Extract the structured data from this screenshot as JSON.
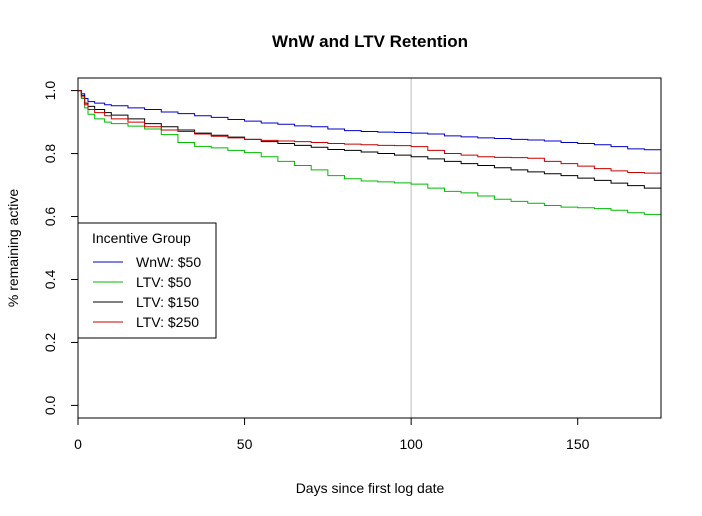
{
  "chart_data": {
    "type": "line",
    "title": "WnW and LTV Retention",
    "xlabel": "Days since first log date",
    "ylabel": "% remaining active",
    "xlim": [
      0,
      175
    ],
    "ylim": [
      -0.04,
      1.04
    ],
    "x_ticks": [
      "0",
      "50",
      "100",
      "150"
    ],
    "y_ticks": [
      "0.0",
      "0.2",
      "0.4",
      "0.6",
      "0.8",
      "1.0"
    ],
    "reference_line": {
      "x": 100,
      "color": "#bebebe"
    },
    "legend": {
      "title": "Incentive Group",
      "position": "left",
      "entries": [
        "WnW: $50",
        "LTV: $50",
        "LTV: $150",
        "LTV: $250"
      ]
    },
    "series": [
      {
        "name": "WnW: $50",
        "color": "#0000cc",
        "x": [
          0,
          1,
          2,
          3,
          5,
          8,
          10,
          15,
          20,
          25,
          30,
          35,
          40,
          45,
          50,
          55,
          60,
          65,
          70,
          75,
          80,
          85,
          90,
          95,
          100,
          105,
          110,
          115,
          120,
          125,
          130,
          135,
          140,
          145,
          150,
          155,
          160,
          165,
          170,
          175
        ],
        "y": [
          1.0,
          0.99,
          0.975,
          0.965,
          0.96,
          0.955,
          0.952,
          0.945,
          0.94,
          0.932,
          0.927,
          0.92,
          0.915,
          0.908,
          0.903,
          0.897,
          0.893,
          0.888,
          0.885,
          0.878,
          0.873,
          0.87,
          0.868,
          0.867,
          0.865,
          0.862,
          0.856,
          0.853,
          0.85,
          0.848,
          0.845,
          0.843,
          0.84,
          0.835,
          0.832,
          0.828,
          0.822,
          0.815,
          0.812,
          0.81
        ]
      },
      {
        "name": "LTV: $50",
        "color": "#00bb00",
        "x": [
          0,
          1,
          2,
          3,
          5,
          8,
          10,
          15,
          20,
          25,
          30,
          35,
          40,
          45,
          50,
          55,
          60,
          65,
          70,
          75,
          80,
          85,
          90,
          95,
          100,
          105,
          110,
          115,
          120,
          125,
          130,
          135,
          140,
          145,
          150,
          155,
          160,
          165,
          170,
          175
        ],
        "y": [
          1.0,
          0.975,
          0.945,
          0.925,
          0.91,
          0.9,
          0.895,
          0.887,
          0.878,
          0.86,
          0.835,
          0.823,
          0.818,
          0.81,
          0.803,
          0.79,
          0.775,
          0.762,
          0.748,
          0.73,
          0.72,
          0.713,
          0.71,
          0.707,
          0.703,
          0.69,
          0.68,
          0.675,
          0.665,
          0.655,
          0.648,
          0.642,
          0.635,
          0.63,
          0.628,
          0.625,
          0.62,
          0.612,
          0.607,
          0.605
        ]
      },
      {
        "name": "LTV: $150",
        "color": "#000000",
        "x": [
          0,
          1,
          2,
          3,
          5,
          8,
          10,
          15,
          20,
          25,
          30,
          35,
          40,
          45,
          50,
          55,
          60,
          65,
          70,
          75,
          80,
          85,
          90,
          95,
          100,
          105,
          110,
          115,
          120,
          125,
          130,
          135,
          140,
          145,
          150,
          155,
          160,
          165,
          170,
          175
        ],
        "y": [
          1.0,
          0.985,
          0.96,
          0.95,
          0.94,
          0.93,
          0.922,
          0.91,
          0.895,
          0.885,
          0.875,
          0.865,
          0.858,
          0.852,
          0.845,
          0.838,
          0.832,
          0.826,
          0.82,
          0.813,
          0.81,
          0.805,
          0.8,
          0.795,
          0.79,
          0.783,
          0.775,
          0.768,
          0.762,
          0.755,
          0.748,
          0.742,
          0.736,
          0.73,
          0.722,
          0.715,
          0.706,
          0.698,
          0.69,
          0.685
        ]
      },
      {
        "name": "LTV: $250",
        "color": "#cc0000",
        "x": [
          0,
          1,
          2,
          3,
          5,
          8,
          10,
          15,
          20,
          25,
          30,
          35,
          40,
          45,
          50,
          55,
          60,
          65,
          70,
          75,
          80,
          85,
          90,
          95,
          100,
          105,
          110,
          115,
          120,
          125,
          130,
          135,
          140,
          145,
          150,
          155,
          160,
          165,
          170,
          175
        ],
        "y": [
          1.0,
          0.98,
          0.955,
          0.94,
          0.93,
          0.92,
          0.91,
          0.9,
          0.885,
          0.875,
          0.87,
          0.862,
          0.855,
          0.85,
          0.845,
          0.842,
          0.84,
          0.838,
          0.835,
          0.832,
          0.83,
          0.828,
          0.826,
          0.825,
          0.822,
          0.81,
          0.8,
          0.795,
          0.79,
          0.788,
          0.787,
          0.785,
          0.775,
          0.768,
          0.76,
          0.752,
          0.745,
          0.74,
          0.738,
          0.735
        ]
      }
    ]
  }
}
